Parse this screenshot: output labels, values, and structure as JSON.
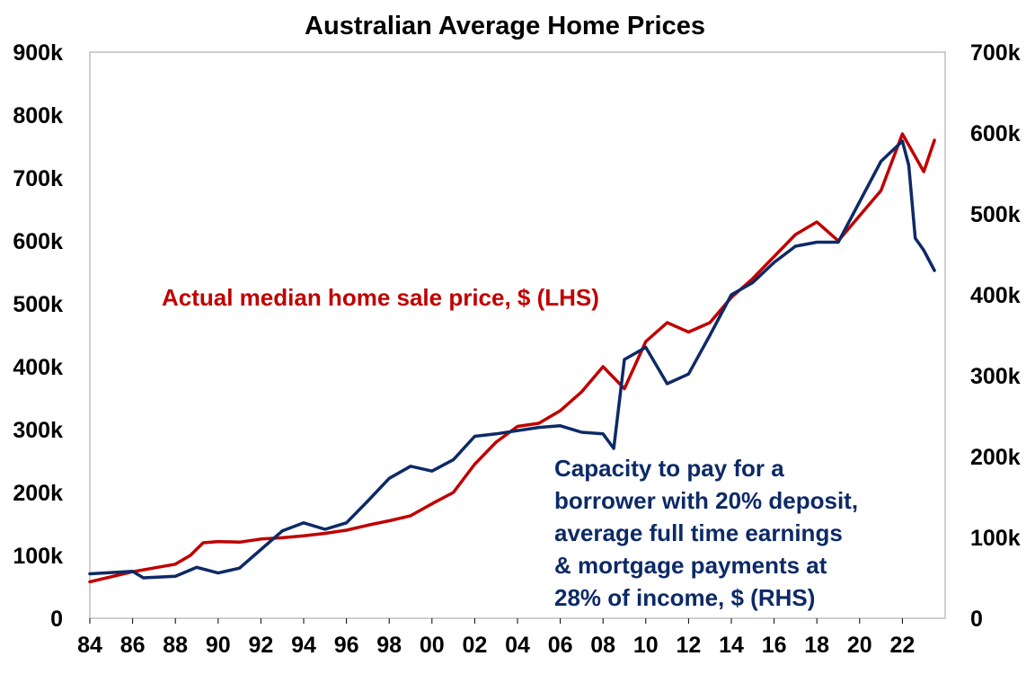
{
  "chart_data": {
    "type": "line",
    "title": "Australian Average Home Prices",
    "x_ticks": [
      "84",
      "86",
      "88",
      "90",
      "92",
      "94",
      "96",
      "98",
      "00",
      "02",
      "04",
      "06",
      "08",
      "10",
      "12",
      "14",
      "16",
      "18",
      "20",
      "22"
    ],
    "x_range": [
      1984,
      2024
    ],
    "y_left": {
      "ticks": [
        "0",
        "100k",
        "200k",
        "300k",
        "400k",
        "500k",
        "600k",
        "700k",
        "800k",
        "900k"
      ],
      "range": [
        0,
        900000
      ]
    },
    "y_right": {
      "ticks": [
        "0",
        "100k",
        "200k",
        "300k",
        "400k",
        "500k",
        "600k",
        "700k"
      ],
      "range": [
        0,
        700000
      ]
    },
    "grid": false,
    "colors": {
      "lhs_series": "#c00000",
      "rhs_series": "#0d2a66"
    },
    "annotations": {
      "lhs": "Actual median home sale price, $ (LHS)",
      "rhs": [
        "Capacity to pay for a",
        "borrower with 20% deposit,",
        "average full time earnings",
        "& mortgage payments at",
        "28% of income, $ (RHS)"
      ]
    },
    "series": [
      {
        "axis": "left",
        "x": [
          1984,
          1986,
          1988,
          1988.7,
          1989.3,
          1990,
          1991,
          1992,
          1993,
          1994,
          1995,
          1996,
          1997,
          1998,
          1999,
          2000,
          2001,
          2002,
          2003,
          2004,
          2005,
          2006,
          2007,
          2008,
          2009,
          2010,
          2011,
          2012,
          2013,
          2014,
          2015,
          2016,
          2017,
          2018,
          2019,
          2020,
          2021,
          2022,
          2022.5,
          2023,
          2023.5
        ],
        "values": [
          58000,
          74000,
          86000,
          100000,
          120000,
          122000,
          121000,
          126000,
          128000,
          131000,
          135000,
          140000,
          148000,
          155000,
          163000,
          182000,
          200000,
          245000,
          280000,
          305000,
          310000,
          330000,
          360000,
          400000,
          365000,
          440000,
          470000,
          455000,
          470000,
          510000,
          540000,
          575000,
          610000,
          630000,
          600000,
          640000,
          680000,
          770000,
          740000,
          710000,
          760000
        ]
      },
      {
        "axis": "right",
        "x": [
          1984,
          1986,
          1986.5,
          1988,
          1989,
          1990,
          1991,
          1992,
          1993,
          1994,
          1995,
          1996,
          1997,
          1998,
          1999,
          2000,
          2001,
          2002,
          2003,
          2004,
          2005,
          2006,
          2007,
          2008,
          2008.5,
          2009,
          2010,
          2011,
          2012,
          2013,
          2014,
          2015,
          2016,
          2017,
          2018,
          2019,
          2020,
          2021,
          2022,
          2022.3,
          2022.6,
          2023,
          2023.5
        ],
        "values": [
          55000,
          58000,
          50000,
          52000,
          63000,
          56000,
          62000,
          85000,
          108000,
          118000,
          110000,
          118000,
          145000,
          173000,
          188000,
          182000,
          196000,
          225000,
          228000,
          232000,
          236000,
          238000,
          230000,
          228000,
          210000,
          320000,
          335000,
          290000,
          302000,
          350000,
          400000,
          415000,
          440000,
          460000,
          465000,
          465000,
          515000,
          565000,
          590000,
          560000,
          470000,
          455000,
          430000
        ]
      }
    ]
  }
}
